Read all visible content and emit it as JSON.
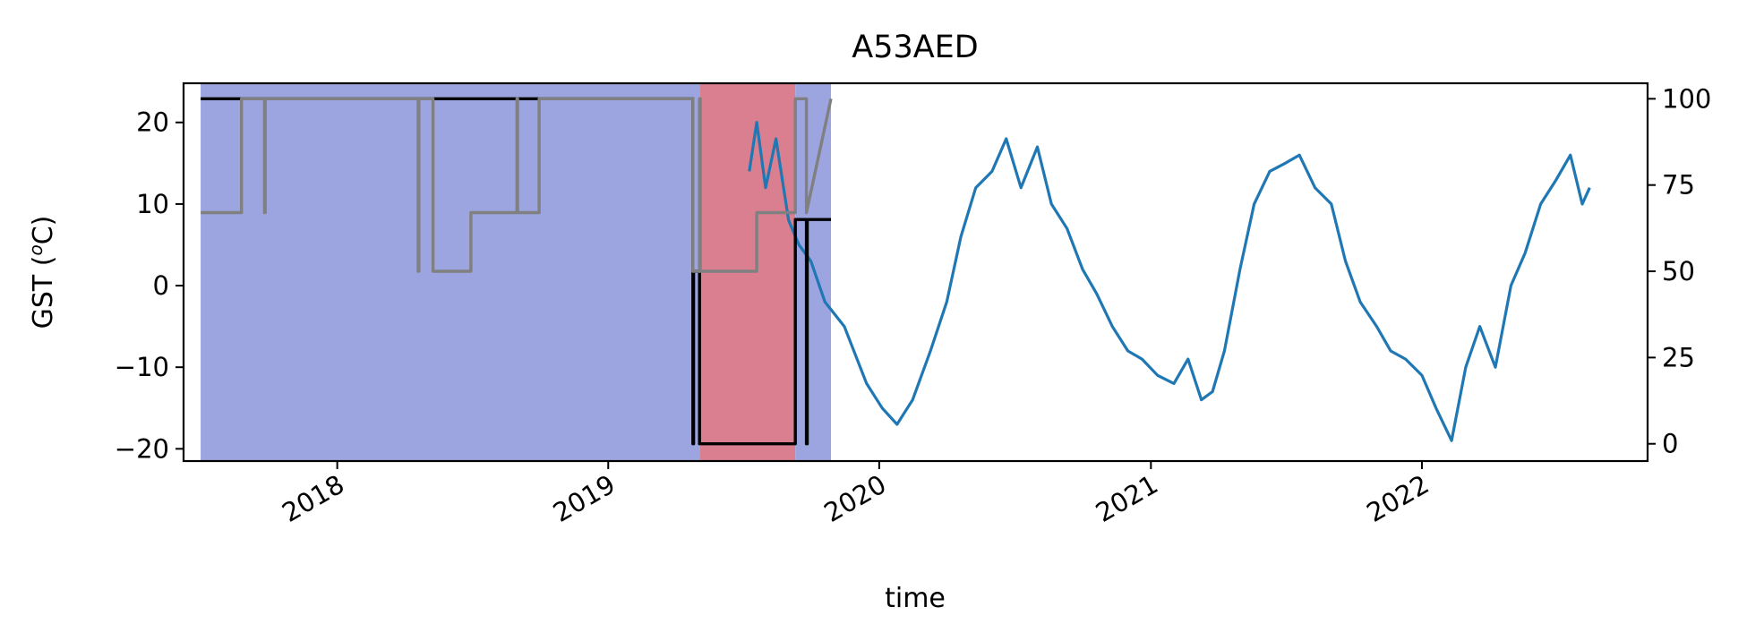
{
  "chart_data": {
    "type": "line",
    "title": "A53AED",
    "xlabel": "time",
    "ylabel": "GST (ᵒC)",
    "ylabel_main": "GST (",
    "ylabel_sup": "o",
    "ylabel_tail": "C)",
    "xlim": [
      "2017-06-08",
      "2022-11-01"
    ],
    "ylim": [
      -21.5,
      24.8
    ],
    "y2lim": [
      -5,
      104.5
    ],
    "x_ticks": [
      "2018",
      "2019",
      "2020",
      "2021",
      "2022"
    ],
    "y_ticks": [
      "20",
      "10",
      "0",
      "−10",
      "−20"
    ],
    "y2_ticks": [
      "100",
      "75",
      "50",
      "25",
      "0"
    ],
    "grid": false,
    "legend": "none",
    "shaded_periods": [
      {
        "start": "2017-07-01",
        "end": "2019-05-04",
        "color": "#9ca5e0"
      },
      {
        "start": "2019-05-04",
        "end": "2019-09-10",
        "color": "#d97f8f"
      },
      {
        "start": "2019-09-10",
        "end": "2019-10-28",
        "color": "#9ca5e0"
      }
    ],
    "series": [
      {
        "color": "#1f77b4",
        "axis": "left",
        "x": [
          "2019-07-10",
          "2019-07-20",
          "2019-08-01",
          "2019-08-15",
          "2019-09-01",
          "2019-09-15",
          "2019-10-01",
          "2019-10-20",
          "2019-11-15",
          "2019-12-15",
          "2020-01-05",
          "2020-01-25",
          "2020-02-15",
          "2020-03-10",
          "2020-04-01",
          "2020-04-20",
          "2020-05-10",
          "2020-06-01",
          "2020-06-20",
          "2020-07-10",
          "2020-08-01",
          "2020-08-20",
          "2020-09-10",
          "2020-10-01",
          "2020-10-20",
          "2020-11-10",
          "2020-12-01",
          "2020-12-20",
          "2021-01-10",
          "2021-02-01",
          "2021-02-20",
          "2021-03-10",
          "2021-03-25",
          "2021-04-10",
          "2021-05-01",
          "2021-05-20",
          "2021-06-10",
          "2021-07-01",
          "2021-07-20",
          "2021-08-10",
          "2021-09-01",
          "2021-09-20",
          "2021-10-10",
          "2021-11-01",
          "2021-11-20",
          "2021-12-10",
          "2022-01-01",
          "2022-01-20",
          "2022-02-10",
          "2022-03-01",
          "2022-03-20",
          "2022-04-10",
          "2022-05-01",
          "2022-05-20",
          "2022-06-10",
          "2022-07-01",
          "2022-07-20",
          "2022-08-05",
          "2022-08-15"
        ],
        "values": [
          14,
          20,
          12,
          18,
          8,
          5,
          3,
          -2,
          -5,
          -12,
          -15,
          -17,
          -14,
          -8,
          -2,
          6,
          12,
          14,
          18,
          12,
          17,
          10,
          7,
          2,
          -1,
          -5,
          -8,
          -9,
          -11,
          -12,
          -9,
          -14,
          -13,
          -8,
          2,
          10,
          14,
          15,
          16,
          12,
          10,
          3,
          -2,
          -5,
          -8,
          -9,
          -11,
          -15,
          -19,
          -10,
          -5,
          -10,
          0,
          4,
          10,
          13,
          16,
          10,
          12
        ]
      },
      {
        "color": "#000000",
        "axis": "right",
        "x": [
          "2017-07-01",
          "2019-04-25",
          "2019-04-25",
          "2019-04-26",
          "2019-04-26",
          "2019-05-04",
          "2019-05-04",
          "2019-09-10",
          "2019-09-10",
          "2019-09-25",
          "2019-09-25",
          "2019-09-26",
          "2019-09-26",
          "2019-10-28"
        ],
        "values": [
          100,
          100,
          0,
          0,
          50,
          50,
          0,
          0,
          65,
          65,
          0,
          0,
          65,
          65
        ]
      },
      {
        "color": "#808080",
        "axis": "right",
        "x": [
          "2017-07-01",
          "2017-08-25",
          "2017-08-25",
          "2017-09-25",
          "2017-09-25",
          "2017-09-26",
          "2017-09-26",
          "2018-04-20",
          "2018-04-20",
          "2018-04-21",
          "2018-04-21",
          "2018-05-10",
          "2018-05-10",
          "2018-06-30",
          "2018-06-30",
          "2018-08-31",
          "2018-08-31",
          "2018-09-01",
          "2018-09-01",
          "2018-09-30",
          "2018-09-30",
          "2018-10-01",
          "2018-10-01",
          "2019-04-25",
          "2019-04-25",
          "2019-05-04",
          "2019-05-04",
          "2019-05-05",
          "2019-05-05",
          "2019-07-20",
          "2019-07-20",
          "2019-09-10",
          "2019-09-10",
          "2019-09-25",
          "2019-09-25",
          "2019-10-28"
        ],
        "values": [
          67,
          67,
          100,
          100,
          67,
          67,
          100,
          100,
          50,
          50,
          100,
          100,
          50,
          50,
          67,
          67,
          100,
          100,
          67,
          67,
          100,
          100,
          100,
          100,
          50,
          50,
          100,
          100,
          50,
          50,
          67,
          67,
          100,
          100,
          67,
          100
        ]
      }
    ]
  }
}
